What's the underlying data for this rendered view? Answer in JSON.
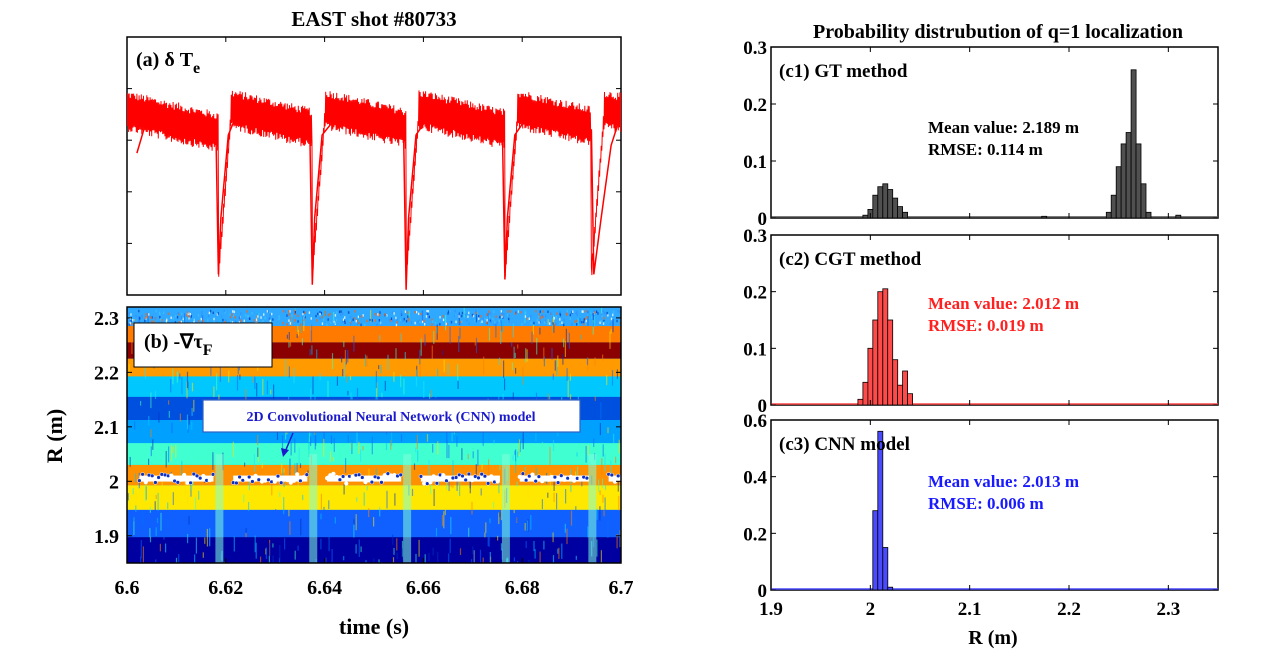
{
  "left": {
    "title": "EAST shot #80733",
    "panel_a": {
      "label": "(a) δ T",
      "sub": "e"
    },
    "panel_b": {
      "label": "(b) -∇τ",
      "sub": "F",
      "annotation": "2D Convolutional Neural Network (CNN) model"
    },
    "xlabel": "time (s)",
    "ylabel": "R (m)"
  },
  "right": {
    "title": "Probability distrubution of q=1 localization",
    "xlabel": "R (m)"
  },
  "colors": {
    "te": "#ff0000",
    "gt": "#505050",
    "cgt": "#ff4a4a",
    "cnn": "#4a4aff",
    "stat_gt": "#000000",
    "stat_cgt": "#ff2020",
    "stat_cnn": "#1a1aff",
    "cnn_marker": "#1030c0",
    "annotation_text": "#1a1acc"
  },
  "chart_data": [
    {
      "id": "a",
      "type": "line",
      "title": "EAST shot #80733",
      "series_name": "δ Te",
      "xlim": [
        6.6,
        6.7
      ],
      "crash_times": [
        6.6185,
        6.6375,
        6.6565,
        6.6765,
        6.694
      ],
      "x": [
        6.602,
        6.604,
        6.6055,
        6.608,
        6.61,
        6.612,
        6.614,
        6.616,
        6.618,
        6.6185,
        6.619,
        6.6205,
        6.622,
        6.625,
        6.628,
        6.631,
        6.634,
        6.637,
        6.6375,
        6.638,
        6.6395,
        6.642,
        6.645,
        6.648,
        6.651,
        6.654,
        6.656,
        6.6565,
        6.657,
        6.6585,
        6.661,
        6.664,
        6.667,
        6.67,
        6.673,
        6.676,
        6.6765,
        6.677,
        6.6785,
        6.681,
        6.684,
        6.687,
        6.69,
        6.693,
        6.694,
        6.6945,
        6.696,
        6.698,
        6.7
      ],
      "y": [
        0.55,
        0.68,
        0.72,
        0.69,
        0.68,
        0.67,
        0.66,
        0.65,
        0.64,
        0.08,
        0.3,
        0.62,
        0.69,
        0.68,
        0.67,
        0.66,
        0.65,
        0.64,
        0.04,
        0.3,
        0.62,
        0.68,
        0.67,
        0.66,
        0.65,
        0.64,
        0.63,
        0.02,
        0.3,
        0.62,
        0.69,
        0.68,
        0.67,
        0.66,
        0.65,
        0.64,
        0.06,
        0.3,
        0.62,
        0.69,
        0.68,
        0.67,
        0.66,
        0.65,
        0.64,
        0.08,
        0.3,
        0.58,
        0.7
      ],
      "ylim": [
        0,
        1
      ]
    },
    {
      "id": "b",
      "type": "heatmap",
      "xlim": [
        6.6,
        6.7
      ],
      "ylim": [
        1.85,
        2.32
      ],
      "ylabel": "R (m)",
      "xlabel": "time (s)",
      "xticks": [
        "6.6",
        "6.62",
        "6.64",
        "6.66",
        "6.68",
        "6.7"
      ],
      "yticks": [
        "1.9",
        "2",
        "2.1",
        "2.2",
        "2.3"
      ],
      "band_centers_R": [
        2.3,
        2.27,
        2.24,
        2.21,
        2.175,
        2.135,
        2.09,
        2.05,
        2.01,
        1.975,
        1.92,
        1.875
      ],
      "band_colors": [
        "#2fa8ff",
        "#ff7a00",
        "#8b0000",
        "#ff9a00",
        "#00c8ff",
        "#0050e0",
        "#00a0ff",
        "#40ffd0",
        "#ff9000",
        "#ffe800",
        "#1060ff",
        "#0000a0"
      ],
      "cnn_points": {
        "R": 2.005,
        "segments": [
          [
            6.6025,
            6.6175
          ],
          [
            6.6215,
            6.6365
          ],
          [
            6.6405,
            6.6555
          ],
          [
            6.6595,
            6.6755
          ],
          [
            6.6795,
            6.6935
          ],
          [
            6.6975,
            6.7
          ]
        ]
      }
    },
    {
      "id": "c1",
      "type": "bar",
      "title": "(c1) GT method",
      "xlim": [
        1.9,
        2.35
      ],
      "ylim": [
        0,
        0.3
      ],
      "yticks": [
        "0",
        "0.1",
        "0.2",
        "0.3"
      ],
      "stats": [
        "Mean value: 2.189 m",
        "RMSE: 0.114 m"
      ],
      "x": [
        1.995,
        2.0,
        2.005,
        2.01,
        2.015,
        2.02,
        2.025,
        2.03,
        2.035,
        2.175,
        2.24,
        2.245,
        2.25,
        2.255,
        2.26,
        2.265,
        2.27,
        2.275,
        2.28,
        2.31
      ],
      "values": [
        0.005,
        0.015,
        0.04,
        0.055,
        0.06,
        0.05,
        0.035,
        0.02,
        0.01,
        0.003,
        0.01,
        0.04,
        0.09,
        0.13,
        0.15,
        0.26,
        0.13,
        0.06,
        0.01,
        0.005
      ]
    },
    {
      "id": "c2",
      "type": "bar",
      "title": "(c2) CGT method",
      "xlim": [
        1.9,
        2.35
      ],
      "ylim": [
        0,
        0.3
      ],
      "yticks": [
        "0",
        "0.1",
        "0.2",
        "0.3"
      ],
      "stats": [
        "Mean value: 2.012 m",
        "RMSE: 0.019 m"
      ],
      "x": [
        1.99,
        1.995,
        2.0,
        2.005,
        2.01,
        2.015,
        2.02,
        2.025,
        2.03,
        2.035,
        2.04
      ],
      "values": [
        0.01,
        0.04,
        0.1,
        0.15,
        0.2,
        0.205,
        0.15,
        0.08,
        0.035,
        0.06,
        0.02
      ]
    },
    {
      "id": "c3",
      "type": "bar",
      "title": "(c3)  CNN model",
      "xlim": [
        1.9,
        2.35
      ],
      "ylim": [
        0,
        0.6
      ],
      "yticks": [
        "0",
        "0.2",
        "0.4",
        "0.6"
      ],
      "xticks": [
        "1.9",
        "2",
        "2.1",
        "2.2",
        "2.3"
      ],
      "xlabel": "R (m)",
      "stats": [
        "Mean value: 2.013 m",
        "RMSE: 0.006 m"
      ],
      "x": [
        2.005,
        2.01,
        2.015,
        2.02
      ],
      "values": [
        0.28,
        0.56,
        0.15,
        0.01
      ]
    }
  ]
}
